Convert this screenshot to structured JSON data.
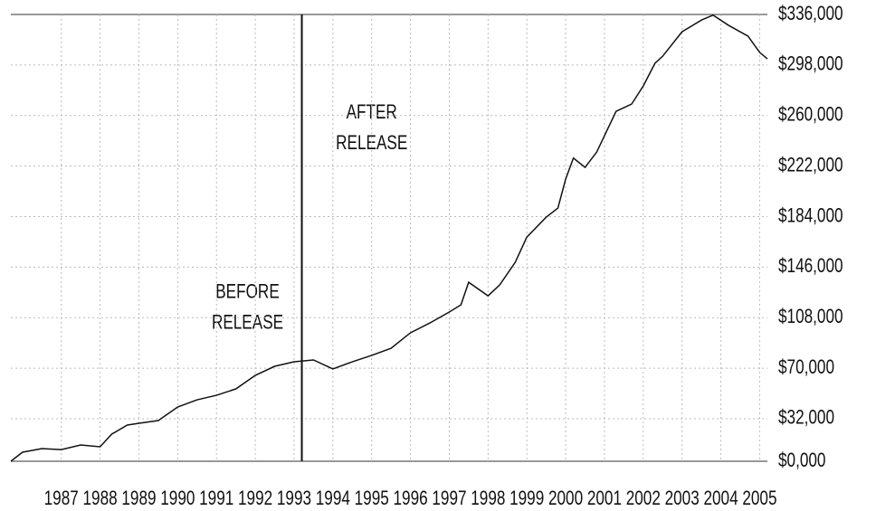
{
  "chart_data": {
    "type": "line",
    "x": [
      1985.7,
      1986,
      1986.5,
      1987,
      1987.5,
      1988,
      1988.3,
      1988.7,
      1989,
      1989.5,
      1990,
      1990.5,
      1991,
      1991.5,
      1992,
      1992.5,
      1993,
      1993.5,
      1994,
      1994.5,
      1995,
      1995.5,
      1996,
      1996.5,
      1997,
      1997.3,
      1997.5,
      1998,
      1998.3,
      1998.7,
      1999,
      1999.5,
      1999.8,
      2000,
      2000.2,
      2000.5,
      2000.8,
      2001,
      2001.3,
      2001.7,
      2002,
      2002.3,
      2002.5,
      2003,
      2003.5,
      2003.8,
      2004.2,
      2004.7,
      2005,
      2005.2
    ],
    "series": [
      {
        "color": "#111111",
        "values": [
          0,
          6800,
          9500,
          8800,
          12200,
          10900,
          20400,
          27200,
          28600,
          30600,
          40800,
          46200,
          49600,
          54400,
          64600,
          71400,
          74800,
          76200,
          69400,
          74800,
          79600,
          85000,
          96600,
          104000,
          112200,
          117600,
          134600,
          124400,
          132600,
          149600,
          168600,
          183600,
          190400,
          212200,
          228000,
          221000,
          232500,
          244800,
          263200,
          268600,
          282200,
          299200,
          304600,
          323000,
          331800,
          335500,
          327800,
          319700,
          307500,
          302600
        ]
      }
    ],
    "xlim": [
      1985.7,
      2005.2
    ],
    "xticks": [
      1987,
      1988,
      1989,
      1990,
      1991,
      1992,
      1993,
      1994,
      1995,
      1996,
      1997,
      1998,
      1999,
      2000,
      2001,
      2002,
      2003,
      2004,
      2005
    ],
    "ylim": [
      0,
      336000
    ],
    "yticks": [
      {
        "value": 0,
        "label": "$0,000"
      },
      {
        "value": 32000,
        "label": "$32,000"
      },
      {
        "value": 70000,
        "label": "$70,000"
      },
      {
        "value": 108000,
        "label": "$108,000"
      },
      {
        "value": 146000,
        "label": "$146,000"
      },
      {
        "value": 184000,
        "label": "$184,000"
      },
      {
        "value": 222000,
        "label": "$222,000"
      },
      {
        "value": 260000,
        "label": "$260,000"
      },
      {
        "value": 298000,
        "label": "$298,000"
      },
      {
        "value": 336000,
        "label": "$336,000"
      }
    ],
    "grid": true,
    "vline": {
      "x": 1993.2
    },
    "annotations": [
      {
        "x": 1991.8,
        "lines": [
          "BEFORE",
          "RELEASE"
        ],
        "y": 115000
      },
      {
        "x": 1995.0,
        "lines": [
          "AFTER",
          "RELEASE"
        ],
        "y": 250000
      }
    ]
  }
}
